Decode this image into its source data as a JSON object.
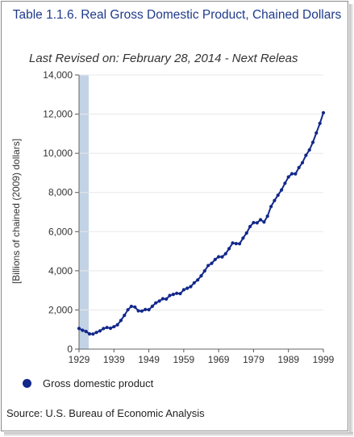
{
  "chart_data": {
    "type": "line",
    "title": "Table 1.1.6. Real Gross Domestic Product, Chained Dollars",
    "subtitle": "Last Revised on: February 28, 2014 - Next Releas",
    "xlabel": "",
    "ylabel": "[Billions of chained (2009) dollars]",
    "xlim": [
      1929,
      1999
    ],
    "ylim": [
      0,
      14000
    ],
    "x_ticks": [
      "1929",
      "1939",
      "1949",
      "1959",
      "1969",
      "1979",
      "1989",
      "1999"
    ],
    "y_ticks": [
      "0",
      "2,000",
      "4,000",
      "6,000",
      "8,000",
      "10,000",
      "12,000",
      "14,000"
    ],
    "grid": "horizontal",
    "legend_position": "bottom-left",
    "series": [
      {
        "name": "Gross domestic product",
        "color": "#13288a",
        "x": [
          1929,
          1930,
          1931,
          1932,
          1933,
          1934,
          1935,
          1936,
          1937,
          1938,
          1939,
          1940,
          1941,
          1942,
          1943,
          1944,
          1945,
          1946,
          1947,
          1948,
          1949,
          1950,
          1951,
          1952,
          1953,
          1954,
          1955,
          1956,
          1957,
          1958,
          1959,
          1960,
          1961,
          1962,
          1963,
          1964,
          1965,
          1966,
          1967,
          1968,
          1969,
          1970,
          1971,
          1972,
          1973,
          1974,
          1975,
          1976,
          1977,
          1978,
          1979,
          1980,
          1981,
          1982,
          1983,
          1984,
          1985,
          1986,
          1987,
          1988,
          1989,
          1990,
          1991,
          1992,
          1993,
          1994,
          1995,
          1996,
          1997,
          1998,
          1999
        ],
        "values": [
          1056,
          963,
          902,
          778,
          772,
          854,
          929,
          1048,
          1102,
          1067,
          1145,
          1241,
          1460,
          1724,
          2010,
          2181,
          2149,
          1954,
          1942,
          2020,
          2013,
          2185,
          2360,
          2456,
          2572,
          2558,
          2740,
          2797,
          2851,
          2832,
          3032,
          3110,
          3190,
          3385,
          3532,
          3742,
          3995,
          4270,
          4380,
          4575,
          4715,
          4710,
          4870,
          5130,
          5420,
          5390,
          5380,
          5670,
          5930,
          6260,
          6460,
          6450,
          6610,
          6490,
          6790,
          7280,
          7590,
          7860,
          8130,
          8470,
          8790,
          8955,
          8950,
          9270,
          9520,
          9900,
          10170,
          10560,
          11040,
          11530,
          12070
        ]
      }
    ],
    "legend": [
      "Gross domestic product"
    ],
    "source": "Source: U.S. Bureau of Economic Analysis"
  }
}
